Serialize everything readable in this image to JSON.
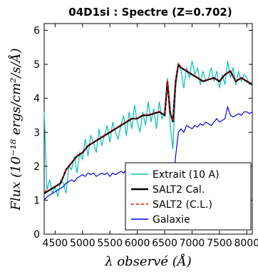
{
  "chart_data": {
    "type": "line",
    "title": "04D1si : Spectre (Z=0.702)",
    "xlabel": "λ observé (Å)",
    "ylabel": "Flux (10⁻¹⁸ ergs/cm²/s/Å)",
    "xlim": [
      4300,
      8100
    ],
    "ylim": [
      0,
      6.2
    ],
    "xticks": [
      "4500",
      "5000",
      "5500",
      "6000",
      "6500",
      "7000",
      "7500",
      "8000"
    ],
    "yticks": [
      "0",
      "1",
      "2",
      "3",
      "4",
      "5",
      "6"
    ],
    "grid": false,
    "legend_position": "lower-right",
    "series": [
      {
        "name": "Extrait (10 A)",
        "color": "#00bfbf",
        "style": "solid",
        "x": [
          4300,
          4350,
          4400,
          4450,
          4500,
          4550,
          4600,
          4650,
          4700,
          4750,
          4800,
          4850,
          4900,
          4950,
          5000,
          5050,
          5100,
          5150,
          5200,
          5250,
          5300,
          5350,
          5400,
          5450,
          5500,
          5550,
          5600,
          5650,
          5700,
          5750,
          5800,
          5850,
          5900,
          5950,
          6000,
          6050,
          6100,
          6150,
          6200,
          6250,
          6300,
          6350,
          6400,
          6450,
          6500,
          6550,
          6600,
          6650,
          6700,
          6750,
          6800,
          6850,
          6900,
          6950,
          7000,
          7050,
          7100,
          7150,
          7200,
          7250,
          7300,
          7350,
          7400,
          7450,
          7500,
          7550,
          7600,
          7650,
          7700,
          7750,
          7800,
          7850,
          7900,
          7950,
          8000,
          8050,
          8100
        ],
        "y": [
          3.6,
          1.3,
          1.6,
          1.2,
          1.4,
          1.1,
          1.6,
          1.5,
          1.2,
          2.0,
          1.9,
          2.3,
          1.8,
          2.4,
          2.2,
          2.8,
          2.3,
          2.9,
          2.7,
          2.4,
          3.1,
          2.6,
          2.9,
          3.2,
          2.7,
          3.3,
          3.0,
          2.8,
          3.2,
          3.5,
          2.9,
          3.6,
          3.1,
          3.8,
          3.3,
          3.0,
          3.6,
          3.2,
          3.9,
          3.3,
          3.7,
          3.1,
          3.9,
          3.4,
          3.6,
          4.6,
          3.2,
          2.5,
          4.3,
          5.0,
          4.8,
          4.3,
          4.9,
          4.6,
          5.1,
          4.7,
          4.9,
          4.4,
          4.8,
          4.5,
          4.6,
          4.9,
          4.5,
          4.8,
          4.3,
          4.7,
          4.4,
          5.1,
          4.6,
          4.9,
          4.4,
          4.8,
          4.5,
          4.7,
          4.6,
          4.4,
          4.5
        ]
      },
      {
        "name": "SALT2 Cal.",
        "color": "#000000",
        "style": "solid",
        "x": [
          4300,
          4400,
          4500,
          4600,
          4700,
          4800,
          4900,
          5000,
          5100,
          5200,
          5300,
          5400,
          5500,
          5600,
          5700,
          5800,
          5900,
          6000,
          6100,
          6200,
          6300,
          6400,
          6500,
          6550,
          6600,
          6650,
          6700,
          6750,
          6800,
          6900,
          7000,
          7100,
          7200,
          7300,
          7400,
          7500,
          7600,
          7700,
          7800,
          7900,
          8000,
          8100
        ],
        "y": [
          1.2,
          1.3,
          1.4,
          1.5,
          1.9,
          2.1,
          2.3,
          2.4,
          2.6,
          2.7,
          2.8,
          2.9,
          3.0,
          3.1,
          3.2,
          3.3,
          3.4,
          3.4,
          3.5,
          3.5,
          3.55,
          3.6,
          3.5,
          4.5,
          3.6,
          3.3,
          4.5,
          5.0,
          4.9,
          4.8,
          4.7,
          4.6,
          4.5,
          4.55,
          4.6,
          4.5,
          4.7,
          4.8,
          4.5,
          4.6,
          4.5,
          4.4
        ]
      },
      {
        "name": "SALT2 (C.L.)",
        "color": "#ff0000",
        "style": "dashed",
        "x": [
          4300,
          4400,
          4500,
          4600,
          4700,
          4800,
          4900,
          5000,
          5100,
          5200,
          5300,
          5400,
          5500,
          5600,
          5700,
          5800,
          5900,
          6000,
          6100,
          6200,
          6300,
          6400,
          6500,
          6550,
          6600,
          6650,
          6700,
          6750,
          6800,
          6900,
          7000,
          7100,
          7200,
          7300,
          7400,
          7500,
          7600,
          7700,
          7800,
          7900,
          8000,
          8100
        ],
        "y": [
          1.25,
          1.32,
          1.42,
          1.52,
          1.92,
          2.12,
          2.32,
          2.42,
          2.62,
          2.72,
          2.82,
          2.92,
          3.02,
          3.12,
          3.22,
          3.32,
          3.42,
          3.42,
          3.52,
          3.52,
          3.57,
          3.62,
          3.52,
          4.52,
          3.62,
          3.32,
          4.52,
          5.02,
          4.92,
          4.82,
          4.72,
          4.62,
          4.52,
          4.57,
          4.62,
          4.52,
          4.72,
          4.82,
          4.52,
          4.62,
          4.52,
          4.42
        ]
      },
      {
        "name": "Galaxie",
        "color": "#0000ff",
        "style": "solid",
        "x": [
          4300,
          4350,
          4400,
          4450,
          4500,
          4550,
          4600,
          4650,
          4700,
          4750,
          4800,
          4850,
          4900,
          4950,
          5000,
          5050,
          5100,
          5150,
          5200,
          5250,
          5300,
          5350,
          5400,
          5450,
          5500,
          5550,
          5600,
          5650,
          5700,
          5750,
          5800,
          5850,
          5900,
          5950,
          6000,
          6050,
          6100,
          6150,
          6200,
          6250,
          6300,
          6350,
          6400,
          6450,
          6500,
          6550,
          6600,
          6650,
          6700,
          6750,
          6800,
          6850,
          6900,
          6950,
          7000,
          7050,
          7100,
          7150,
          7200,
          7250,
          7300,
          7350,
          7400,
          7450,
          7500,
          7550,
          7600,
          7650,
          7700,
          7750,
          7800,
          7850,
          7900,
          7950,
          8000,
          8050,
          8100
        ],
        "y": [
          1.0,
          1.1,
          1.15,
          1.2,
          1.25,
          1.3,
          1.35,
          1.4,
          1.5,
          1.55,
          1.6,
          1.55,
          1.65,
          1.7,
          1.75,
          1.7,
          1.8,
          1.75,
          1.8,
          1.7,
          1.75,
          1.8,
          1.75,
          1.8,
          1.7,
          1.8,
          1.75,
          1.8,
          1.85,
          1.8,
          1.9,
          1.85,
          1.9,
          1.9,
          1.95,
          1.9,
          2.0,
          1.9,
          2.0,
          1.95,
          2.0,
          1.9,
          2.05,
          2.0,
          1.95,
          2.05,
          1.8,
          1.3,
          2.3,
          3.0,
          3.1,
          3.0,
          3.2,
          3.15,
          3.1,
          3.2,
          3.15,
          3.25,
          3.2,
          3.3,
          3.25,
          3.2,
          3.3,
          3.4,
          3.3,
          3.35,
          3.4,
          3.75,
          3.5,
          3.45,
          3.5,
          3.55,
          3.5,
          3.6,
          3.6,
          3.55,
          3.6
        ]
      }
    ]
  }
}
